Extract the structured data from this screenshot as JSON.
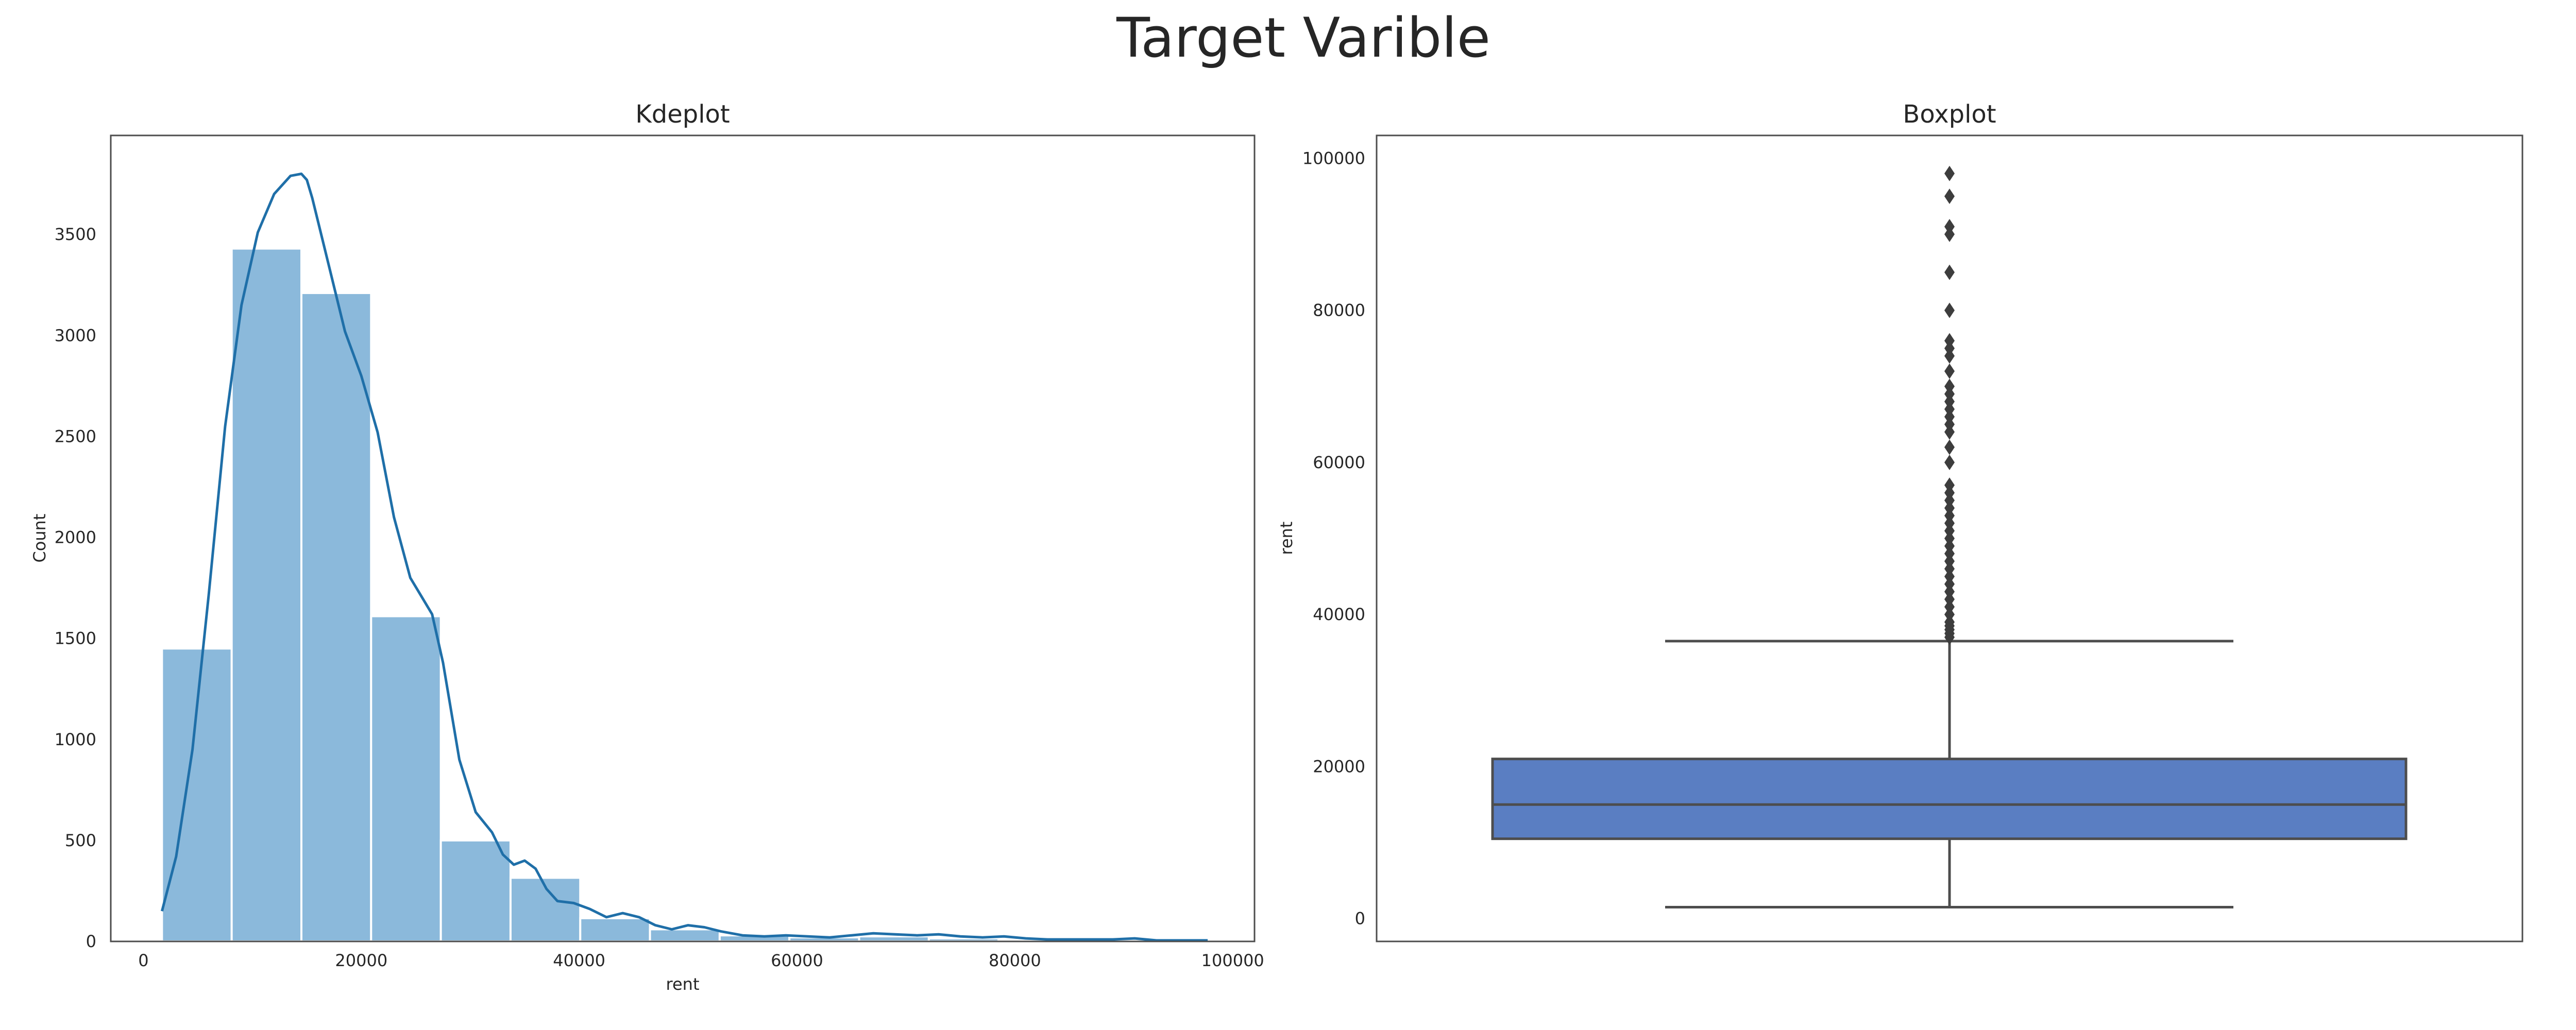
{
  "title": "Target Varible",
  "chart_data": [
    {
      "type": "bar",
      "title": "Kdeplot",
      "xlabel": "rent",
      "ylabel": "Count",
      "xlim": [
        -3000,
        102000
      ],
      "ylim": [
        0,
        3990
      ],
      "xticks": [
        0,
        20000,
        40000,
        60000,
        80000,
        100000
      ],
      "yticks": [
        0,
        500,
        1000,
        1500,
        2000,
        2500,
        3000,
        3500
      ],
      "bins": [
        {
          "x0": 1700,
          "x1": 8100,
          "count": 1450
        },
        {
          "x0": 8100,
          "x1": 14500,
          "count": 3430
        },
        {
          "x0": 14500,
          "x1": 20900,
          "count": 3210
        },
        {
          "x0": 20900,
          "x1": 27300,
          "count": 1610
        },
        {
          "x0": 27300,
          "x1": 33700,
          "count": 500
        },
        {
          "x0": 33700,
          "x1": 40100,
          "count": 315
        },
        {
          "x0": 40100,
          "x1": 46500,
          "count": 115
        },
        {
          "x0": 46500,
          "x1": 52900,
          "count": 60
        },
        {
          "x0": 52900,
          "x1": 59300,
          "count": 30
        },
        {
          "x0": 59300,
          "x1": 65700,
          "count": 20
        },
        {
          "x0": 65700,
          "x1": 72100,
          "count": 25
        },
        {
          "x0": 72100,
          "x1": 78500,
          "count": 15
        },
        {
          "x0": 78500,
          "x1": 84900,
          "count": 8
        },
        {
          "x0": 84900,
          "x1": 91300,
          "count": 6
        },
        {
          "x0": 91300,
          "x1": 97700,
          "count": 4
        }
      ],
      "kde": {
        "x": [
          1700,
          3000,
          4500,
          6000,
          7500,
          9000,
          10500,
          12000,
          13500,
          14500,
          15000,
          15500,
          17000,
          18500,
          20000,
          21500,
          23000,
          24500,
          25500,
          26500,
          27500,
          29000,
          30500,
          32000,
          33000,
          34000,
          35000,
          36000,
          37000,
          38000,
          39500,
          41000,
          42500,
          44000,
          45500,
          47000,
          48500,
          50000,
          51500,
          53000,
          55000,
          57000,
          59000,
          61000,
          63000,
          65000,
          67000,
          69000,
          71000,
          73000,
          75000,
          77000,
          79000,
          81000,
          83000,
          85000,
          87000,
          89000,
          91000,
          93000,
          95000,
          97700
        ],
        "y": [
          150,
          420,
          950,
          1720,
          2550,
          3150,
          3510,
          3700,
          3790,
          3800,
          3770,
          3680,
          3350,
          3020,
          2800,
          2520,
          2100,
          1800,
          1710,
          1620,
          1380,
          900,
          640,
          540,
          430,
          380,
          400,
          360,
          260,
          200,
          190,
          160,
          120,
          140,
          120,
          80,
          60,
          80,
          70,
          50,
          30,
          25,
          30,
          25,
          20,
          30,
          40,
          35,
          30,
          35,
          25,
          20,
          25,
          15,
          10,
          10,
          10,
          10,
          15,
          5,
          5,
          5
        ]
      },
      "colors": {
        "bar": "#8bb9db",
        "kde": "#1f6fa8"
      }
    },
    {
      "type": "box",
      "title": "Boxplot",
      "ylabel": "rent",
      "ylim": [
        -3000,
        103000
      ],
      "yticks": [
        0,
        20000,
        40000,
        60000,
        80000,
        100000
      ],
      "box": {
        "min": 1500,
        "q1": 10500,
        "median": 15000,
        "q3": 21000,
        "whisker_high": 36500
      },
      "outliers": [
        37000,
        37500,
        38000,
        38500,
        39000,
        40000,
        41000,
        42000,
        43000,
        44000,
        45000,
        46000,
        47000,
        48000,
        49000,
        50000,
        51000,
        52000,
        53000,
        54000,
        55000,
        56000,
        57000,
        60000,
        62000,
        64000,
        65000,
        66000,
        67000,
        68000,
        69000,
        70000,
        72000,
        74000,
        75000,
        76000,
        80000,
        85000,
        90000,
        91000,
        95000,
        98000
      ],
      "colors": {
        "box": "#5a7ec2",
        "line": "#4d4d4d"
      }
    }
  ]
}
